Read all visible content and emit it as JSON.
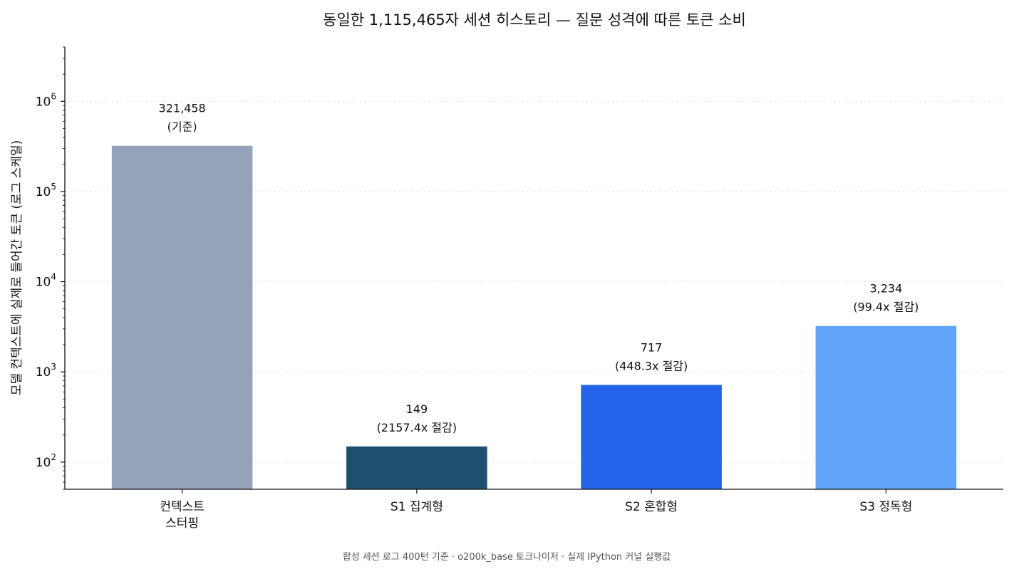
{
  "chart_data": {
    "type": "bar",
    "title": "동일한 1,115,465자 세션 히스토리 — 질문 성격에 따른 토큰 소비",
    "ylabel": "모델 컨텍스트에 실제로 들어간 토큰 (로그 스케일)",
    "xlabel": "",
    "yscale": "log",
    "ylim": [
      50,
      4000000
    ],
    "grid": "y-dotted",
    "categories": [
      {
        "lines": [
          "컨텍스트",
          "스터핑"
        ]
      },
      {
        "lines": [
          "S1 집계형"
        ]
      },
      {
        "lines": [
          "S2 혼합형"
        ]
      },
      {
        "lines": [
          "S3 정독형"
        ]
      }
    ],
    "values": [
      321458,
      149,
      717,
      3234
    ],
    "bar_labels": [
      {
        "value_text": "321,458",
        "note": "(기준)"
      },
      {
        "value_text": "149",
        "note": "(2157.4x 절감)"
      },
      {
        "value_text": "717",
        "note": "(448.3x 절감)"
      },
      {
        "value_text": "3,234",
        "note": "(99.4x 절감)"
      }
    ],
    "colors": [
      "#94a3b8",
      "#1e4e70",
      "#2563eb",
      "#60a5fa"
    ],
    "yticks": [
      {
        "base": "10",
        "exp": "2",
        "value": 100
      },
      {
        "base": "10",
        "exp": "3",
        "value": 1000
      },
      {
        "base": "10",
        "exp": "4",
        "value": 10000
      },
      {
        "base": "10",
        "exp": "5",
        "value": 100000
      },
      {
        "base": "10",
        "exp": "6",
        "value": 1000000
      }
    ],
    "footnote": "합성 세션 로그 400턴 기준 · o200k_base 토크나이저 · 실제 IPython 커널 실행값"
  }
}
